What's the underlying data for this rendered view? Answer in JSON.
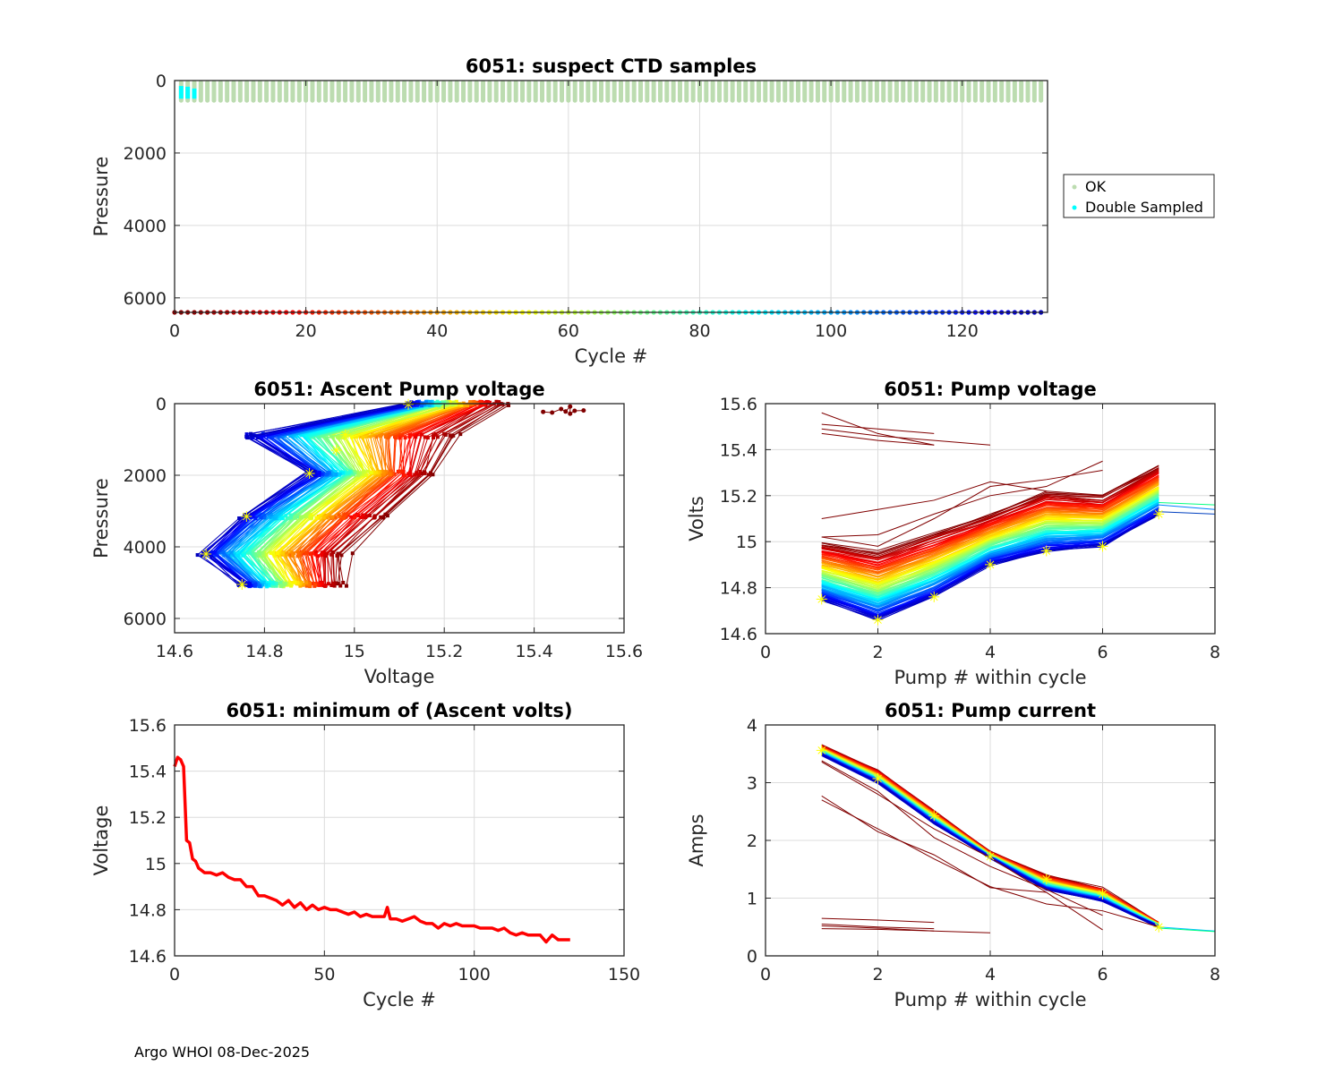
{
  "footer": "Argo WHOI 08-Dec-2025",
  "colors": {
    "ok": "#bcdcb0",
    "double_sampled": "#00ffff",
    "min_volts_line": "#ff0000",
    "highlight_star": "#ffff00",
    "outlier": "#800000",
    "grid": "#dcdcdc",
    "axis": "#262626"
  },
  "chart_data": [
    {
      "id": "suspect-ctd",
      "type": "scatter",
      "title": "6051: suspect CTD samples",
      "xlabel": "Cycle #",
      "ylabel": "Pressure",
      "xlim": [
        0,
        133
      ],
      "ylim": [
        6400,
        0
      ],
      "xticks": [
        0,
        20,
        40,
        60,
        80,
        100,
        120
      ],
      "yticks": [
        0,
        2000,
        4000,
        6000
      ],
      "grid": true,
      "legend": {
        "placement": "outside-right",
        "entries": [
          {
            "label": "OK",
            "color": "#bcdcb0"
          },
          {
            "label": "Double Sampled",
            "color": "#00ffff"
          }
        ]
      },
      "ok_cycles": {
        "from": 1,
        "to": 132,
        "pressure_range": [
          0,
          500
        ]
      },
      "double_sampled": [
        {
          "cycle": 1,
          "pressure_range": [
            150,
            500
          ]
        },
        {
          "cycle": 2,
          "pressure_range": [
            170,
            500
          ]
        },
        {
          "cycle": 3,
          "pressure_range": [
            220,
            500
          ]
        }
      ],
      "cycle_colorbar": {
        "from": 0,
        "to": 132,
        "pressure": 6400,
        "colormap": "jet-reversed"
      }
    },
    {
      "id": "ascent-pump-voltage",
      "type": "line",
      "title": "6051: Ascent Pump voltage",
      "xlabel": "Voltage",
      "ylabel": "Pressure",
      "xlim": [
        14.6,
        15.6
      ],
      "ylim": [
        6400,
        0
      ],
      "xticks": [
        14.6,
        14.8,
        15.0,
        15.2,
        15.4,
        15.6
      ],
      "xticklabels": [
        "14.6",
        "14.8",
        "15",
        "15.2",
        "15.4",
        "15.6"
      ],
      "yticks": [
        0,
        2000,
        4000,
        6000
      ],
      "grid": true,
      "n_cycles": 132,
      "pressure_levels": [
        0,
        900,
        1950,
        3150,
        4200,
        5050
      ],
      "first_cycle_volts": [
        15.34,
        15.24,
        15.18,
        15.08,
        14.99,
        14.98
      ],
      "last_cycle_volts": [
        15.12,
        14.76,
        14.9,
        14.75,
        14.66,
        14.75
      ],
      "highlight_points": [
        {
          "v": 15.12,
          "p": 20
        },
        {
          "v": 14.98,
          "p": 870
        },
        {
          "v": 14.96,
          "p": 1300
        },
        {
          "v": 14.9,
          "p": 1950
        },
        {
          "v": 14.76,
          "p": 3150
        },
        {
          "v": 14.67,
          "p": 4200
        },
        {
          "v": 14.75,
          "p": 5050
        }
      ],
      "outlier_points": [
        {
          "v": 15.42,
          "p": 230
        },
        {
          "v": 15.44,
          "p": 250
        },
        {
          "v": 15.46,
          "p": 150
        },
        {
          "v": 15.47,
          "p": 220
        },
        {
          "v": 15.48,
          "p": 80
        },
        {
          "v": 15.48,
          "p": 280
        },
        {
          "v": 15.49,
          "p": 200
        },
        {
          "v": 15.51,
          "p": 190
        }
      ]
    },
    {
      "id": "pump-voltage",
      "type": "line",
      "title": "6051: Pump voltage",
      "xlabel": "Pump # within cycle",
      "ylabel": "Volts",
      "xlim": [
        0,
        8
      ],
      "ylim": [
        14.6,
        15.6
      ],
      "xticks": [
        0,
        2,
        4,
        6,
        8
      ],
      "yticks": [
        14.6,
        14.8,
        15.0,
        15.2,
        15.4,
        15.6
      ],
      "yticklabels": [
        "14.6",
        "14.8",
        "15",
        "15.2",
        "15.4",
        "15.6"
      ],
      "grid": true,
      "n_cycles": 132,
      "pumps": [
        1,
        2,
        3,
        4,
        5,
        6,
        7
      ],
      "first_cycle_volts": [
        15.0,
        14.96,
        15.04,
        15.12,
        15.22,
        15.2,
        15.33
      ],
      "last_cycle_volts": [
        14.75,
        14.66,
        14.76,
        14.9,
        14.96,
        14.98,
        15.12
      ],
      "highlight_points": [
        {
          "x": 1,
          "y": 14.75
        },
        {
          "x": 2,
          "y": 14.66
        },
        {
          "x": 3,
          "y": 14.76
        },
        {
          "x": 4,
          "y": 14.9
        },
        {
          "x": 5,
          "y": 14.96
        },
        {
          "x": 6,
          "y": 14.98
        },
        {
          "x": 7,
          "y": 15.12
        }
      ],
      "outlier_lines": [
        [
          [
            1,
            15.56
          ],
          [
            2,
            15.47
          ],
          [
            3,
            15.42
          ]
        ],
        [
          [
            1,
            15.51
          ],
          [
            2,
            15.49
          ],
          [
            3,
            15.47
          ]
        ],
        [
          [
            1,
            15.49
          ],
          [
            2,
            15.46
          ],
          [
            4,
            15.42
          ]
        ],
        [
          [
            1,
            15.47
          ],
          [
            2,
            15.44
          ],
          [
            3,
            15.42
          ]
        ],
        [
          [
            1,
            15.1
          ],
          [
            2,
            15.14
          ],
          [
            3,
            15.18
          ],
          [
            4,
            15.26
          ],
          [
            5,
            15.22
          ]
        ],
        [
          [
            1,
            15.02
          ],
          [
            2,
            15.03
          ],
          [
            3,
            15.12
          ],
          [
            4,
            15.2
          ],
          [
            5,
            15.24
          ],
          [
            6,
            15.35
          ]
        ],
        [
          [
            1,
            15.02
          ],
          [
            2,
            14.98
          ],
          [
            3,
            15.1
          ],
          [
            4,
            15.24
          ],
          [
            5,
            15.27
          ],
          [
            6,
            15.31
          ]
        ]
      ],
      "tail_lines": [
        {
          "color": "#00ff80",
          "points": [
            [
              7,
              15.17
            ],
            [
              8,
              15.16
            ]
          ]
        },
        {
          "color": "#0080ff",
          "points": [
            [
              7,
              15.16
            ],
            [
              8,
              15.14
            ]
          ]
        },
        {
          "color": "#0040c0",
          "points": [
            [
              7,
              15.13
            ],
            [
              8,
              15.12
            ]
          ]
        }
      ]
    },
    {
      "id": "min-ascent-volts",
      "type": "line",
      "title": "6051: minimum of (Ascent volts)",
      "xlabel": "Cycle #",
      "ylabel": "Voltage",
      "xlim": [
        0,
        150
      ],
      "ylim": [
        14.6,
        15.6
      ],
      "xticks": [
        0,
        50,
        100,
        150
      ],
      "yticks": [
        14.6,
        14.8,
        15.0,
        15.2,
        15.4,
        15.6
      ],
      "yticklabels": [
        "14.6",
        "14.8",
        "15",
        "15.2",
        "15.4",
        "15.6"
      ],
      "grid": true,
      "x": [
        0,
        1,
        2,
        3,
        4,
        5,
        6,
        7,
        8,
        9,
        10,
        12,
        14,
        16,
        18,
        20,
        22,
        24,
        26,
        28,
        30,
        32,
        34,
        36,
        38,
        40,
        42,
        44,
        46,
        48,
        50,
        52,
        54,
        56,
        58,
        60,
        62,
        64,
        66,
        68,
        70,
        71,
        72,
        74,
        76,
        78,
        80,
        82,
        84,
        86,
        88,
        90,
        92,
        94,
        96,
        98,
        100,
        102,
        104,
        106,
        108,
        110,
        112,
        114,
        116,
        118,
        120,
        122,
        124,
        126,
        128,
        130,
        132
      ],
      "y": [
        15.42,
        15.46,
        15.45,
        15.42,
        15.1,
        15.09,
        15.02,
        15.01,
        14.98,
        14.97,
        14.96,
        14.96,
        14.95,
        14.96,
        14.94,
        14.93,
        14.93,
        14.9,
        14.9,
        14.86,
        14.86,
        14.85,
        14.84,
        14.82,
        14.84,
        14.81,
        14.83,
        14.8,
        14.82,
        14.8,
        14.81,
        14.8,
        14.8,
        14.79,
        14.78,
        14.79,
        14.77,
        14.78,
        14.77,
        14.77,
        14.77,
        14.81,
        14.76,
        14.76,
        14.75,
        14.76,
        14.77,
        14.75,
        14.74,
        14.74,
        14.72,
        14.74,
        14.73,
        14.74,
        14.73,
        14.73,
        14.73,
        14.72,
        14.72,
        14.72,
        14.71,
        14.72,
        14.7,
        14.69,
        14.7,
        14.69,
        14.69,
        14.69,
        14.66,
        14.69,
        14.67,
        14.67,
        14.67
      ]
    },
    {
      "id": "pump-current",
      "type": "line",
      "title": "6051: Pump current",
      "xlabel": "Pump # within cycle",
      "ylabel": "Amps",
      "xlim": [
        0,
        8
      ],
      "ylim": [
        0,
        4
      ],
      "xticks": [
        0,
        2,
        4,
        6,
        8
      ],
      "yticks": [
        0,
        1,
        2,
        3,
        4
      ],
      "grid": true,
      "n_cycles": 132,
      "pumps": [
        1,
        2,
        3,
        4,
        5,
        6,
        7
      ],
      "first_cycle_amps": [
        3.65,
        3.22,
        2.52,
        1.8,
        1.4,
        1.18,
        0.57
      ],
      "last_cycle_amps": [
        3.48,
        3.0,
        2.3,
        1.7,
        1.15,
        0.95,
        0.5
      ],
      "highlight_points": [
        {
          "x": 1,
          "y": 3.56
        },
        {
          "x": 2,
          "y": 3.07
        },
        {
          "x": 3,
          "y": 2.43
        },
        {
          "x": 4,
          "y": 1.72
        },
        {
          "x": 5,
          "y": 1.33
        },
        {
          "x": 6,
          "y": 1.07
        },
        {
          "x": 7,
          "y": 0.5
        }
      ],
      "outlier_lines": [
        [
          [
            1,
            3.38
          ],
          [
            2,
            2.85
          ],
          [
            3,
            2.05
          ],
          [
            4,
            1.55
          ],
          [
            5,
            1.15
          ],
          [
            6,
            0.7
          ]
        ],
        [
          [
            1,
            3.36
          ],
          [
            2,
            2.8
          ],
          [
            3,
            2.2
          ],
          [
            4,
            1.7
          ],
          [
            5,
            1.1
          ],
          [
            6,
            0.45
          ]
        ],
        [
          [
            1,
            2.77
          ],
          [
            2,
            2.15
          ],
          [
            3,
            1.75
          ],
          [
            4,
            1.18
          ],
          [
            5,
            1.1
          ]
        ],
        [
          [
            1,
            2.7
          ],
          [
            2,
            2.2
          ],
          [
            3,
            1.68
          ],
          [
            4,
            1.2
          ],
          [
            5,
            0.9
          ],
          [
            6,
            0.78
          ],
          [
            7,
            0.5
          ]
        ],
        [
          [
            1,
            0.65
          ],
          [
            2,
            0.62
          ],
          [
            3,
            0.58
          ]
        ],
        [
          [
            1,
            0.55
          ],
          [
            2,
            0.5
          ],
          [
            3,
            0.47
          ]
        ],
        [
          [
            1,
            0.52
          ],
          [
            2,
            0.48
          ],
          [
            3,
            0.43
          ]
        ],
        [
          [
            1,
            0.47
          ],
          [
            2,
            0.46
          ],
          [
            4,
            0.4
          ]
        ]
      ],
      "tail_lines": [
        {
          "color": "#00c0ff",
          "points": [
            [
              7,
              0.5
            ],
            [
              8,
              0.43
            ]
          ]
        },
        {
          "color": "#00ff80",
          "points": [
            [
              7,
              0.48
            ],
            [
              8,
              0.42
            ]
          ]
        }
      ]
    }
  ]
}
